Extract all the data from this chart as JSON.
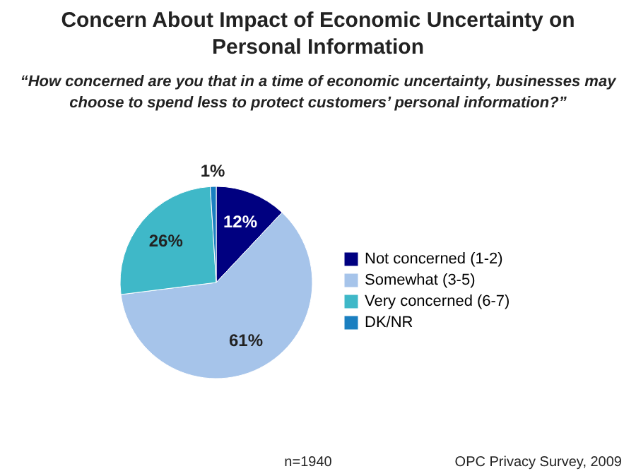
{
  "chart_data": {
    "type": "pie",
    "title": "Concern About Impact of Economic Uncertainty on Personal Information",
    "subtitle": "“How concerned are you that in a time of economic uncertainty, businesses may choose to spend less to protect customers’ personal information?”",
    "categories": [
      "Not concerned (1-2)",
      "Somewhat (3-5)",
      "Very concerned (6-7)",
      "DK/NR"
    ],
    "values": [
      12,
      61,
      26,
      1
    ],
    "value_labels": [
      "12%",
      "61%",
      "26%",
      "1%"
    ],
    "colors": [
      "#000080",
      "#a6c4ea",
      "#3fb8c8",
      "#1a7fc0"
    ],
    "legend": "right",
    "annotations": [
      "n=1940",
      "OPC Privacy Survey, 2009"
    ]
  }
}
